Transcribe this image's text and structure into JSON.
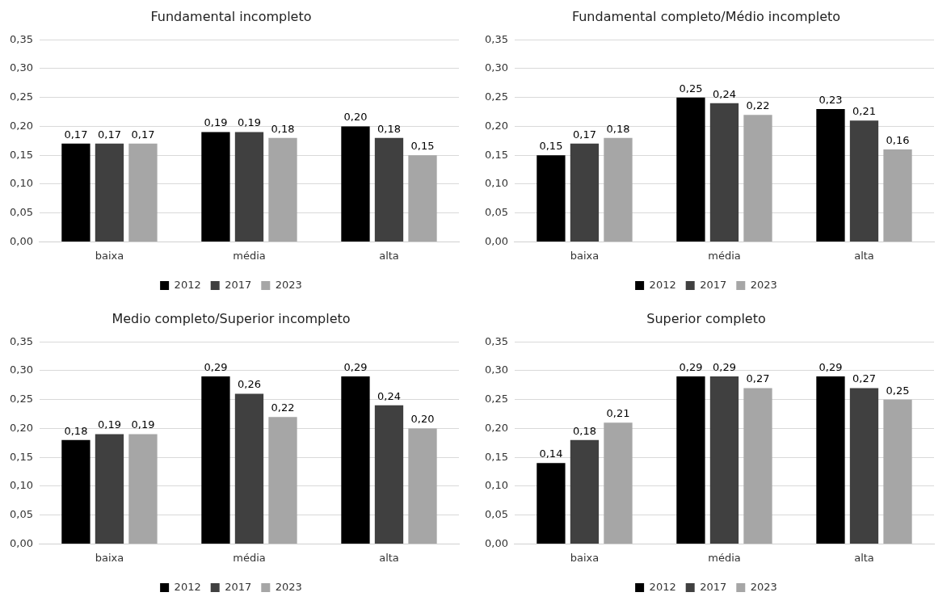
{
  "chart_data": [
    {
      "type": "bar",
      "title": "Fundamental incompleto",
      "categories": [
        "baixa",
        "média",
        "alta"
      ],
      "series": [
        {
          "name": "2012",
          "color": "#000000",
          "values": [
            0.17,
            0.19,
            0.2
          ],
          "value_labels": [
            "0,17",
            "0,19",
            "0,20"
          ]
        },
        {
          "name": "2017",
          "color": "#404040",
          "values": [
            0.17,
            0.19,
            0.18
          ],
          "value_labels": [
            "0,17",
            "0,19",
            "0,18"
          ]
        },
        {
          "name": "2023",
          "color": "#a6a6a6",
          "values": [
            0.17,
            0.18,
            0.15
          ],
          "value_labels": [
            "0,17",
            "0,18",
            "0,15"
          ]
        }
      ],
      "ylim": [
        0,
        0.35
      ],
      "yticks": [
        {
          "value": 0,
          "label": "0,00"
        },
        {
          "value": 0.05,
          "label": "0,05"
        },
        {
          "value": 0.1,
          "label": "0,10"
        },
        {
          "value": 0.15,
          "label": "0,15"
        },
        {
          "value": 0.2,
          "label": "0,20"
        },
        {
          "value": 0.25,
          "label": "0,25"
        },
        {
          "value": 0.3,
          "label": "0,30"
        },
        {
          "value": 0.35,
          "label": "0,35"
        }
      ],
      "grid": "y",
      "legend": "bottom"
    },
    {
      "type": "bar",
      "title": "Fundamental completo/Médio incompleto",
      "categories": [
        "baixa",
        "média",
        "alta"
      ],
      "series": [
        {
          "name": "2012",
          "color": "#000000",
          "values": [
            0.15,
            0.25,
            0.23
          ],
          "value_labels": [
            "0,15",
            "0,25",
            "0,23"
          ]
        },
        {
          "name": "2017",
          "color": "#404040",
          "values": [
            0.17,
            0.24,
            0.21
          ],
          "value_labels": [
            "0,17",
            "0,24",
            "0,21"
          ]
        },
        {
          "name": "2023",
          "color": "#a6a6a6",
          "values": [
            0.18,
            0.22,
            0.16
          ],
          "value_labels": [
            "0,18",
            "0,22",
            "0,16"
          ]
        }
      ],
      "ylim": [
        0,
        0.35
      ],
      "yticks": [
        {
          "value": 0,
          "label": "0,00"
        },
        {
          "value": 0.05,
          "label": "0,05"
        },
        {
          "value": 0.1,
          "label": "0,10"
        },
        {
          "value": 0.15,
          "label": "0,15"
        },
        {
          "value": 0.2,
          "label": "0,20"
        },
        {
          "value": 0.25,
          "label": "0,25"
        },
        {
          "value": 0.3,
          "label": "0,30"
        },
        {
          "value": 0.35,
          "label": "0,35"
        }
      ],
      "grid": "y",
      "legend": "bottom"
    },
    {
      "type": "bar",
      "title": "Medio completo/Superior incompleto",
      "categories": [
        "baixa",
        "média",
        "alta"
      ],
      "series": [
        {
          "name": "2012",
          "color": "#000000",
          "values": [
            0.18,
            0.29,
            0.29
          ],
          "value_labels": [
            "0,18",
            "0,29",
            "0,29"
          ]
        },
        {
          "name": "2017",
          "color": "#404040",
          "values": [
            0.19,
            0.26,
            0.24
          ],
          "value_labels": [
            "0,19",
            "0,26",
            "0,24"
          ]
        },
        {
          "name": "2023",
          "color": "#a6a6a6",
          "values": [
            0.19,
            0.22,
            0.2
          ],
          "value_labels": [
            "0,19",
            "0,22",
            "0,20"
          ]
        }
      ],
      "ylim": [
        0,
        0.35
      ],
      "yticks": [
        {
          "value": 0,
          "label": "0,00"
        },
        {
          "value": 0.05,
          "label": "0,05"
        },
        {
          "value": 0.1,
          "label": "0,10"
        },
        {
          "value": 0.15,
          "label": "0,15"
        },
        {
          "value": 0.2,
          "label": "0,20"
        },
        {
          "value": 0.25,
          "label": "0,25"
        },
        {
          "value": 0.3,
          "label": "0,30"
        },
        {
          "value": 0.35,
          "label": "0,35"
        }
      ],
      "grid": "y",
      "legend": "bottom"
    },
    {
      "type": "bar",
      "title": "Superior completo",
      "categories": [
        "baixa",
        "média",
        "alta"
      ],
      "series": [
        {
          "name": "2012",
          "color": "#000000",
          "values": [
            0.14,
            0.29,
            0.29
          ],
          "value_labels": [
            "0,14",
            "0,29",
            "0,29"
          ]
        },
        {
          "name": "2017",
          "color": "#404040",
          "values": [
            0.18,
            0.29,
            0.27
          ],
          "value_labels": [
            "0,18",
            "0,29",
            "0,27"
          ]
        },
        {
          "name": "2023",
          "color": "#a6a6a6",
          "values": [
            0.21,
            0.27,
            0.25
          ],
          "value_labels": [
            "0,21",
            "0,27",
            "0,25"
          ]
        }
      ],
      "ylim": [
        0,
        0.35
      ],
      "yticks": [
        {
          "value": 0,
          "label": "0,00"
        },
        {
          "value": 0.05,
          "label": "0,05"
        },
        {
          "value": 0.1,
          "label": "0,10"
        },
        {
          "value": 0.15,
          "label": "0,15"
        },
        {
          "value": 0.2,
          "label": "0,20"
        },
        {
          "value": 0.25,
          "label": "0,25"
        },
        {
          "value": 0.3,
          "label": "0,30"
        },
        {
          "value": 0.35,
          "label": "0,35"
        }
      ],
      "grid": "y",
      "legend": "bottom"
    }
  ]
}
